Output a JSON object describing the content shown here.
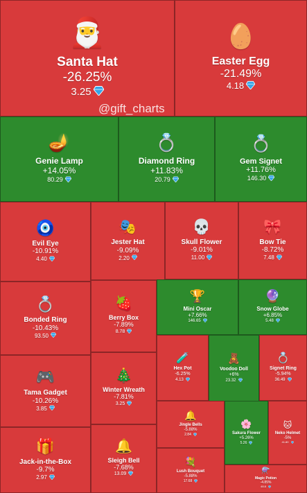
{
  "watermark": "@gift_charts",
  "colors": {
    "down": "#d83a3b",
    "up": "#2d8b2d",
    "diamond": "#35a6e8"
  },
  "chart_data": {
    "type": "treemap",
    "items": [
      {
        "name": "Santa Hat",
        "change": "-26.25%",
        "change_value": -26.25,
        "price": "3.25",
        "icon": "santa-hat-icon",
        "emoji": "🎅",
        "dir": "down"
      },
      {
        "name": "Easter Egg",
        "change": "-21.49%",
        "change_value": -21.49,
        "price": "4.18",
        "icon": "easter-egg-icon",
        "emoji": "🥚",
        "dir": "down"
      },
      {
        "name": "Genie Lamp",
        "change": "+14.05%",
        "change_value": 14.05,
        "price": "80.29",
        "icon": "genie-lamp-icon",
        "emoji": "🪔",
        "dir": "up"
      },
      {
        "name": "Diamond Ring",
        "change": "+11.83%",
        "change_value": 11.83,
        "price": "20.79",
        "icon": "diamond-ring-icon",
        "emoji": "💍",
        "dir": "up"
      },
      {
        "name": "Gem Signet",
        "change": "+11.76%",
        "change_value": 11.76,
        "price": "146.30",
        "icon": "gem-signet-icon",
        "emoji": "💍",
        "dir": "up"
      },
      {
        "name": "Evil Eye",
        "change": "-10.91%",
        "change_value": -10.91,
        "price": "4.40",
        "icon": "evil-eye-icon",
        "emoji": "🧿",
        "dir": "down"
      },
      {
        "name": "Jester Hat",
        "change": "-9.09%",
        "change_value": -9.09,
        "price": "2.20",
        "icon": "jester-hat-icon",
        "emoji": "🎭",
        "dir": "down"
      },
      {
        "name": "Skull Flower",
        "change": "-9.01%",
        "change_value": -9.01,
        "price": "11.00",
        "icon": "skull-flower-icon",
        "emoji": "💀",
        "dir": "down"
      },
      {
        "name": "Bow Tie",
        "change": "-8.72%",
        "change_value": -8.72,
        "price": "7.48",
        "icon": "bow-tie-icon",
        "emoji": "🎀",
        "dir": "down"
      },
      {
        "name": "Bonded Ring",
        "change": "-10.43%",
        "change_value": -10.43,
        "price": "93.50",
        "icon": "bonded-ring-icon",
        "emoji": "💍",
        "dir": "down"
      },
      {
        "name": "Berry Box",
        "change": "-7.89%",
        "change_value": -7.89,
        "price": "8.78",
        "icon": "berry-box-icon",
        "emoji": "🍓",
        "dir": "down"
      },
      {
        "name": "Mini Oscar",
        "change": "+7.66%",
        "change_value": 7.66,
        "price": "146.65",
        "icon": "mini-oscar-icon",
        "emoji": "🏆",
        "dir": "up"
      },
      {
        "name": "Snow Globe",
        "change": "+6.85%",
        "change_value": 6.85,
        "price": "5.48",
        "icon": "snow-globe-icon",
        "emoji": "🔮",
        "dir": "up"
      },
      {
        "name": "Tama Gadget",
        "change": "-10.26%",
        "change_value": -10.26,
        "price": "3.85",
        "icon": "tama-gadget-icon",
        "emoji": "🎮",
        "dir": "down"
      },
      {
        "name": "Winter Wreath",
        "change": "-7.81%",
        "change_value": -7.81,
        "price": "3.25",
        "icon": "winter-wreath-icon",
        "emoji": "🎄",
        "dir": "down"
      },
      {
        "name": "Hex Pot",
        "change": "-6.25%",
        "change_value": -6.25,
        "price": "4.13",
        "icon": "hex-pot-icon",
        "emoji": "🧪",
        "dir": "down"
      },
      {
        "name": "Voodoo Doll",
        "change": "+6%",
        "change_value": 6,
        "price": "23.32",
        "icon": "voodoo-doll-icon",
        "emoji": "🧸",
        "dir": "up"
      },
      {
        "name": "Signet Ring",
        "change": "-5.94%",
        "change_value": -5.94,
        "price": "36.49",
        "icon": "signet-ring-icon",
        "emoji": "💍",
        "dir": "down"
      },
      {
        "name": "Jingle Bells",
        "change": "-5.88%",
        "change_value": -5.88,
        "price": "2.84",
        "icon": "jingle-bells-icon",
        "emoji": "🔔",
        "dir": "down"
      },
      {
        "name": "Sakura Flower",
        "change": "+5.26%",
        "change_value": 5.26,
        "price": "5.26",
        "icon": "sakura-flower-icon",
        "emoji": "🌸",
        "dir": "up"
      },
      {
        "name": "Neko Helmet",
        "change": "-5%",
        "change_value": -5,
        "price": "41.80",
        "icon": "neko-helmet-icon",
        "emoji": "🐱",
        "dir": "down"
      },
      {
        "name": "Jack-in-the-Box",
        "change": "-9.7%",
        "change_value": -9.7,
        "price": "2.97",
        "icon": "jack-in-the-box-icon",
        "emoji": "🎁",
        "dir": "down"
      },
      {
        "name": "Sleigh Bell",
        "change": "-7.68%",
        "change_value": -7.68,
        "price": "13.09",
        "icon": "sleigh-bell-icon",
        "emoji": "🔔",
        "dir": "down"
      },
      {
        "name": "Lush Bouquet",
        "change": "-5.88%",
        "change_value": -5.88,
        "price": "17.68",
        "icon": "lush-bouquet-icon",
        "emoji": "💐",
        "dir": "down"
      },
      {
        "name": "Magic Potion",
        "change": "-4.85%",
        "change_value": -4.85,
        "price": "48.8",
        "icon": "magic-potion-icon",
        "emoji": "⚗️",
        "dir": "down"
      }
    ]
  }
}
